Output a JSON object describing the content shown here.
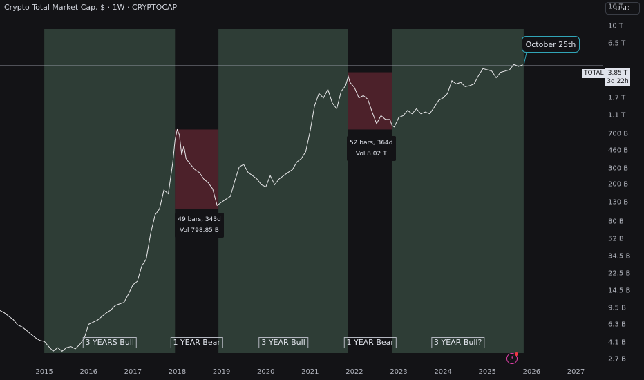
{
  "header": {
    "title": "Crypto Total Market Cap, $ · 1W · CRYPTOCAP",
    "currency": "USD"
  },
  "colors": {
    "background": "#131316",
    "bull_zone": "#3f574a",
    "bear_zone": "#7c2d3c",
    "line": "#e8e8ea",
    "callout_border": "#31a5b7"
  },
  "annotations": {
    "zones": [
      {
        "label": "3 YEARS Bull",
        "type": "bull",
        "from": 2015.0,
        "to": 2017.95
      },
      {
        "label": "1 YEAR Bear",
        "type": "bear",
        "from": 2017.95,
        "to": 2018.93
      },
      {
        "label": "3 YEAR Bull",
        "type": "bull",
        "from": 2018.93,
        "to": 2021.86
      },
      {
        "label": "1 YEAR Bear",
        "type": "bear",
        "from": 2021.86,
        "to": 2022.85
      },
      {
        "label": "3 YEAR Bull?",
        "type": "bull",
        "from": 2022.85,
        "to": 2025.82
      }
    ],
    "bear_boxes": [
      {
        "from": 2017.95,
        "to": 2018.93,
        "top": 780,
        "bottom": 110
      },
      {
        "from": 2021.86,
        "to": 2022.85,
        "top": 3200,
        "bottom": 780
      }
    ],
    "stats": [
      {
        "bars": "49 bars, 343d",
        "vol": "Vol 798.85 B"
      },
      {
        "bars": "52 bars, 364d",
        "vol": "Vol 8.02 T"
      }
    ],
    "callout": "October 25th",
    "price_symbol": "TOTAL",
    "price_value": "3.85 T",
    "price_countdown": "3d 22h",
    "current_price": 3850
  },
  "chart_data": {
    "type": "line",
    "title": "Crypto Total Market Cap, $ · 1W · CRYPTOCAP",
    "y_unit": "billion USD",
    "y_scale": "log",
    "ylim": [
      2.4,
      19000
    ],
    "xlim": [
      2014.0,
      2027.6
    ],
    "x_ticks": [
      2015,
      2016,
      2017,
      2018,
      2019,
      2020,
      2021,
      2022,
      2023,
      2024,
      2025,
      2026,
      2027
    ],
    "y_ticks": [
      {
        "label": "16 T",
        "value": 16000
      },
      {
        "label": "10 T",
        "value": 10000
      },
      {
        "label": "6.5 T",
        "value": 6500
      },
      {
        "label": "2.7 T",
        "value": 2700
      },
      {
        "label": "1.7 T",
        "value": 1700
      },
      {
        "label": "1.1 T",
        "value": 1100
      },
      {
        "label": "700 B",
        "value": 700
      },
      {
        "label": "460 B",
        "value": 460
      },
      {
        "label": "300 B",
        "value": 300
      },
      {
        "label": "200 B",
        "value": 200
      },
      {
        "label": "130 B",
        "value": 130
      },
      {
        "label": "80 B",
        "value": 80
      },
      {
        "label": "52 B",
        "value": 52
      },
      {
        "label": "34.5 B",
        "value": 34.5
      },
      {
        "label": "22.5 B",
        "value": 22.5
      },
      {
        "label": "14.5 B",
        "value": 14.5
      },
      {
        "label": "9.5 B",
        "value": 9.5
      },
      {
        "label": "6.3 B",
        "value": 6.3
      },
      {
        "label": "4.1 B",
        "value": 4.1
      },
      {
        "label": "2.7 B",
        "value": 2.7
      }
    ],
    "series": [
      {
        "x": [
          2014.0,
          2014.1,
          2014.2,
          2014.3,
          2014.4,
          2014.5,
          2014.6,
          2014.7,
          2014.8,
          2014.9,
          2015.0,
          2015.1,
          2015.2,
          2015.3,
          2015.4,
          2015.5,
          2015.6,
          2015.7,
          2015.8,
          2015.9,
          2016.0,
          2016.2,
          2016.4,
          2016.5,
          2016.6,
          2016.8,
          2016.9,
          2017.0,
          2017.1,
          2017.2,
          2017.3,
          2017.4,
          2017.5,
          2017.6,
          2017.7,
          2017.8,
          2017.9,
          2017.95,
          2018.0,
          2018.05,
          2018.1,
          2018.15,
          2018.2,
          2018.3,
          2018.4,
          2018.5,
          2018.6,
          2018.7,
          2018.8,
          2018.9,
          2019.0,
          2019.1,
          2019.2,
          2019.3,
          2019.4,
          2019.5,
          2019.6,
          2019.7,
          2019.8,
          2019.9,
          2020.0,
          2020.1,
          2020.2,
          2020.3,
          2020.4,
          2020.5,
          2020.6,
          2020.7,
          2020.8,
          2020.9,
          2021.0,
          2021.1,
          2021.2,
          2021.3,
          2021.4,
          2021.5,
          2021.6,
          2021.7,
          2021.8,
          2021.86,
          2021.9,
          2022.0,
          2022.1,
          2022.2,
          2022.3,
          2022.4,
          2022.5,
          2022.6,
          2022.7,
          2022.8,
          2022.85,
          2022.9,
          2023.0,
          2023.1,
          2023.2,
          2023.3,
          2023.4,
          2023.5,
          2023.6,
          2023.7,
          2023.8,
          2023.9,
          2024.0,
          2024.1,
          2024.2,
          2024.3,
          2024.4,
          2024.5,
          2024.6,
          2024.7,
          2024.8,
          2024.9,
          2025.0,
          2025.1,
          2025.2,
          2025.3,
          2025.4,
          2025.5,
          2025.6,
          2025.7,
          2025.8
        ],
        "y": [
          9,
          8.5,
          7.8,
          7.2,
          6.3,
          6,
          5.5,
          5,
          4.6,
          4.3,
          4.2,
          3.7,
          3.3,
          3.6,
          3.3,
          3.6,
          3.7,
          3.5,
          3.9,
          4.5,
          6.4,
          7.1,
          8.5,
          9.1,
          10.2,
          11,
          13.5,
          17,
          18.5,
          27,
          32,
          60,
          95,
          110,
          175,
          160,
          350,
          600,
          780,
          680,
          420,
          520,
          380,
          330,
          290,
          270,
          230,
          210,
          180,
          120,
          130,
          140,
          150,
          220,
          310,
          330,
          270,
          250,
          230,
          200,
          190,
          250,
          200,
          230,
          250,
          270,
          290,
          350,
          380,
          450,
          750,
          1400,
          1900,
          1700,
          2100,
          1500,
          1300,
          2000,
          2300,
          2900,
          2500,
          2200,
          1700,
          1800,
          1650,
          1200,
          900,
          1100,
          1000,
          1000,
          860,
          830,
          1050,
          1100,
          1250,
          1150,
          1300,
          1150,
          1200,
          1150,
          1350,
          1600,
          1700,
          1900,
          2600,
          2400,
          2500,
          2250,
          2300,
          2400,
          2950,
          3500,
          3400,
          3300,
          2800,
          3200,
          3300,
          3400,
          3900,
          3700,
          3850
        ]
      }
    ]
  }
}
